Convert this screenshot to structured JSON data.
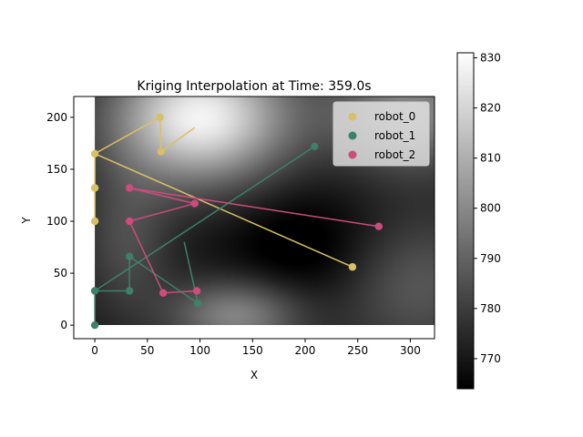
{
  "chart_data": {
    "type": "scatter",
    "title": "Kriging Interpolation at Time: 359.0s",
    "xlabel": "X",
    "ylabel": "Y",
    "xlim": [
      -20,
      323
    ],
    "ylim": [
      -13,
      220
    ],
    "x_ticks": [
      0,
      50,
      100,
      150,
      200,
      250,
      300
    ],
    "y_ticks": [
      0,
      50,
      100,
      150,
      200
    ],
    "legend_position": "top-right",
    "heatmap": {
      "extent": [
        0,
        325,
        0,
        220
      ],
      "colormap": "gray",
      "vmin": 764,
      "vmax": 831,
      "bumps": [
        {
          "x": 100,
          "y": 200,
          "sx": 60,
          "sy": 45,
          "a": 58
        },
        {
          "x": 300,
          "y": 205,
          "sx": 55,
          "sy": 40,
          "a": 30
        },
        {
          "x": 135,
          "y": 10,
          "sx": 45,
          "sy": 25,
          "a": 30
        },
        {
          "x": 30,
          "y": 80,
          "sx": 30,
          "sy": 50,
          "a": 14
        },
        {
          "x": 300,
          "y": 40,
          "sx": 60,
          "sy": 50,
          "a": 18
        },
        {
          "x": 205,
          "y": 70,
          "sx": 55,
          "sy": 45,
          "a": -12
        }
      ],
      "base": 770
    },
    "colorbar": {
      "ticks": [
        770,
        780,
        790,
        800,
        810,
        820,
        830
      ]
    },
    "series": [
      {
        "name": "robot_0",
        "color": "#d8c068",
        "points": [
          [
            0,
            100
          ],
          [
            0,
            132
          ],
          [
            0,
            165
          ],
          [
            62,
            200
          ],
          [
            63,
            167
          ]
        ],
        "path": [
          [
            0,
            100
          ],
          [
            0,
            132
          ],
          [
            0,
            165
          ],
          [
            62,
            200
          ],
          [
            63,
            167
          ],
          [
            95,
            190
          ]
        ],
        "segment": [
          [
            0,
            165
          ],
          [
            245,
            56
          ]
        ],
        "segment_points": [
          [
            245,
            56
          ]
        ]
      },
      {
        "name": "robot_1",
        "color": "#3f8068",
        "points": [
          [
            0,
            0
          ],
          [
            0,
            33
          ],
          [
            33,
            33
          ],
          [
            33,
            66
          ],
          [
            98,
            21
          ]
        ],
        "path": [
          [
            0,
            0
          ],
          [
            0,
            33
          ],
          [
            33,
            33
          ],
          [
            33,
            66
          ],
          [
            98,
            21
          ]
        ],
        "segment": [
          [
            0,
            33
          ],
          [
            209,
            172
          ]
        ],
        "segment_points": [
          [
            209,
            172
          ]
        ],
        "extra": [
          [
            85,
            80
          ],
          [
            98,
            21
          ]
        ]
      },
      {
        "name": "robot_2",
        "color": "#cc4c7c",
        "points": [
          [
            33,
            132
          ],
          [
            33,
            100
          ],
          [
            95,
            117
          ],
          [
            65,
            31
          ],
          [
            97,
            33
          ]
        ],
        "path": [
          [
            95,
            117
          ],
          [
            33,
            100
          ],
          [
            65,
            31
          ],
          [
            97,
            33
          ]
        ],
        "segment": [
          [
            33,
            132
          ],
          [
            270,
            95
          ]
        ],
        "segment_points": [
          [
            270,
            95
          ]
        ],
        "extra": [
          [
            33,
            132
          ],
          [
            95,
            117
          ]
        ]
      }
    ]
  }
}
